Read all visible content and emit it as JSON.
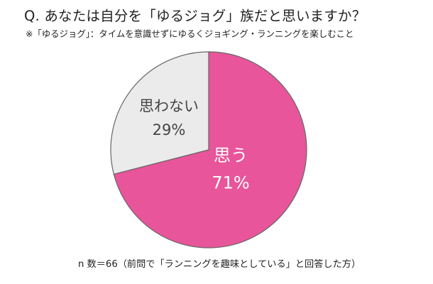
{
  "question": "Q. あなたは自分を「ゆるジョグ」族だと思いますか？",
  "note": "※「ゆるジョグ」：タイムを意識せずにゆるくジョギング・ランニングを楽しむこと",
  "footnote": "n 数＝66（前問で「ランニングを趣味としている」と回答した方）",
  "chart_data": {
    "type": "pie",
    "categories": [
      "思う",
      "思わない"
    ],
    "values": [
      71,
      29
    ],
    "value_labels": [
      "71%",
      "29%"
    ],
    "unit": "%",
    "colors": [
      "#e8559a",
      "#ebebeb"
    ],
    "label_colors": [
      "#ffffff",
      "#444444"
    ],
    "start": "top (12 o'clock), clockwise",
    "n": 66
  }
}
